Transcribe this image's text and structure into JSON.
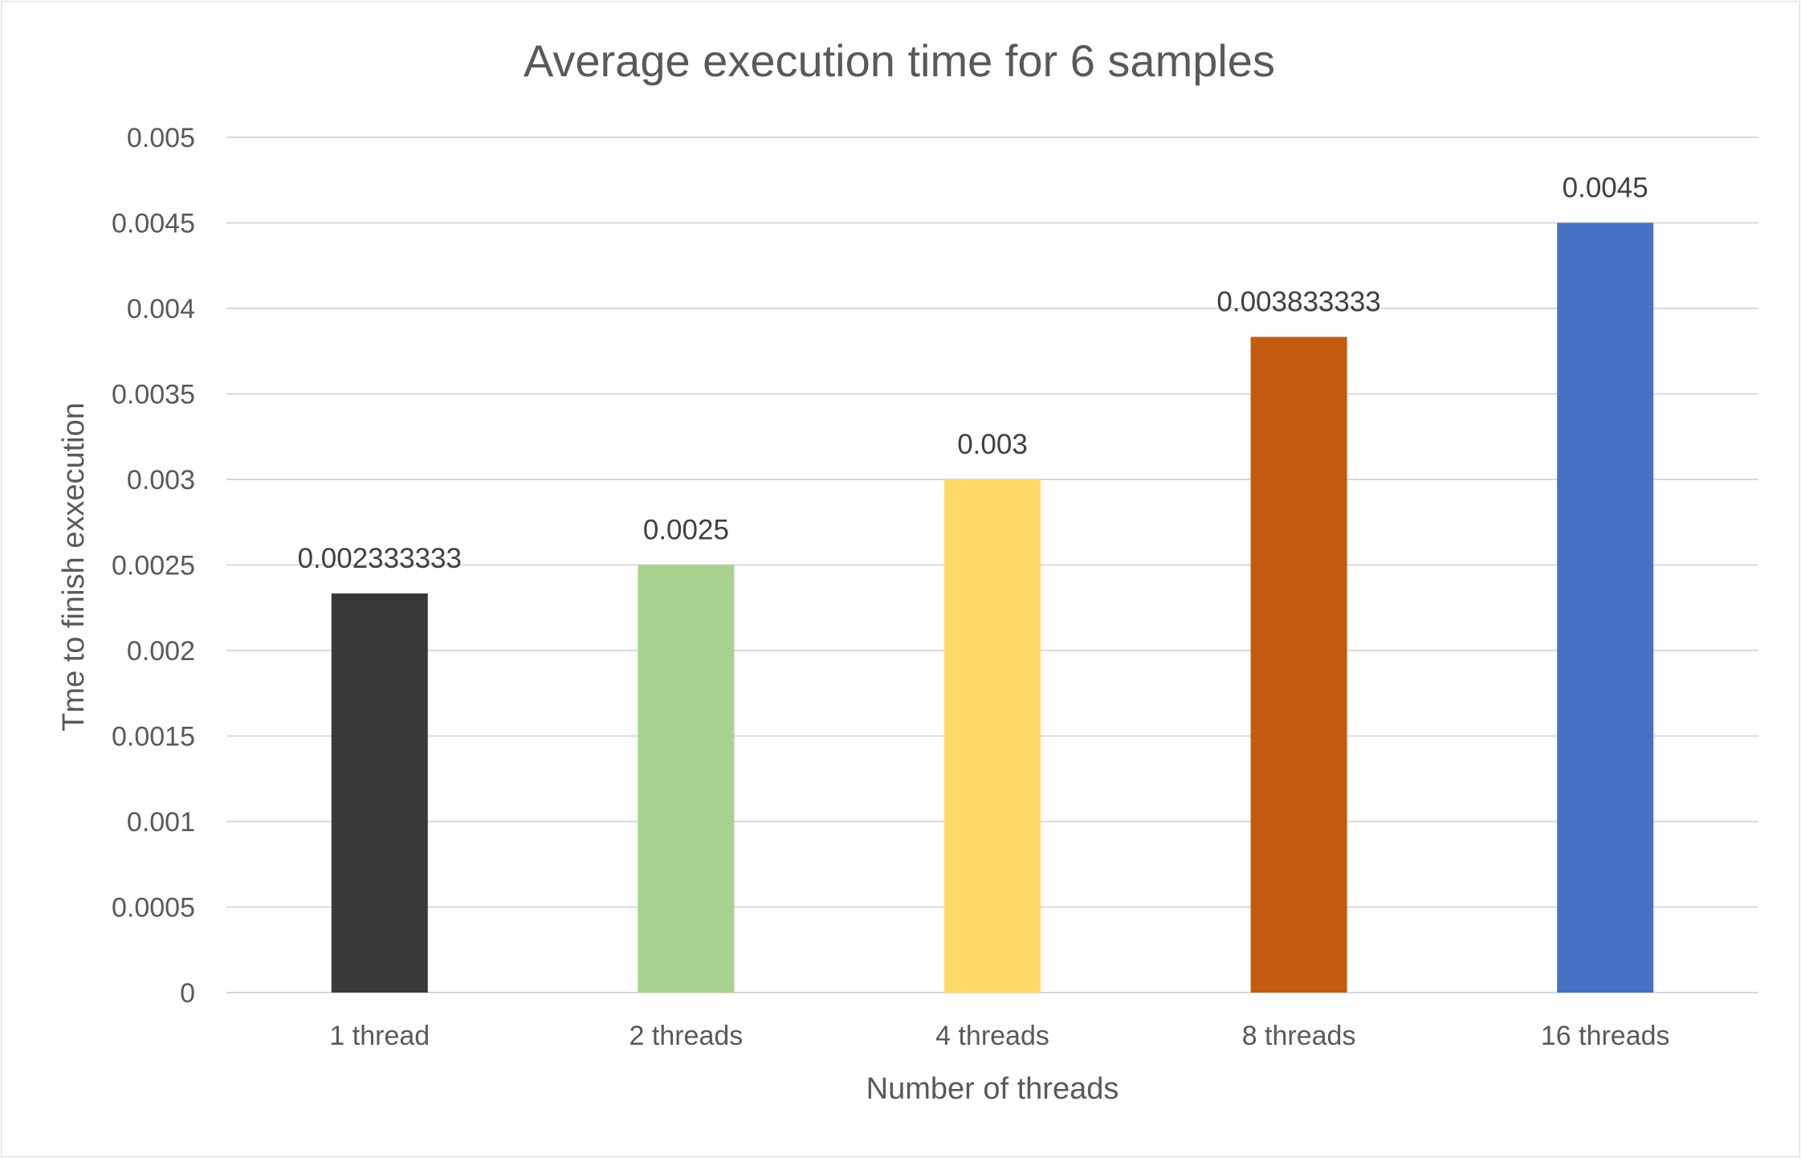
{
  "chart_data": {
    "type": "bar",
    "title": "Average execution time for 6 samples",
    "xlabel": "Number of threads",
    "ylabel": "Tme to finish exxecution",
    "categories": [
      "1 thread",
      "2 threads",
      "4 threads",
      "8 threads",
      "16 threads"
    ],
    "values": [
      0.002333333,
      0.0025,
      0.003,
      0.003833333,
      0.0045
    ],
    "data_labels": [
      "0.002333333",
      "0.0025",
      "0.003",
      "0.003833333",
      "0.0045"
    ],
    "colors": [
      "#3a3937",
      "#a9d18e",
      "#ffd966",
      "#c55a11",
      "#4472c4"
    ],
    "ylim": [
      0,
      0.005
    ],
    "yticks": [
      "0",
      "0.0005",
      "0.001",
      "0.0015",
      "0.002",
      "0.0025",
      "0.003",
      "0.0035",
      "0.004",
      "0.0045",
      "0.005"
    ],
    "grid": true,
    "legend": "none"
  }
}
